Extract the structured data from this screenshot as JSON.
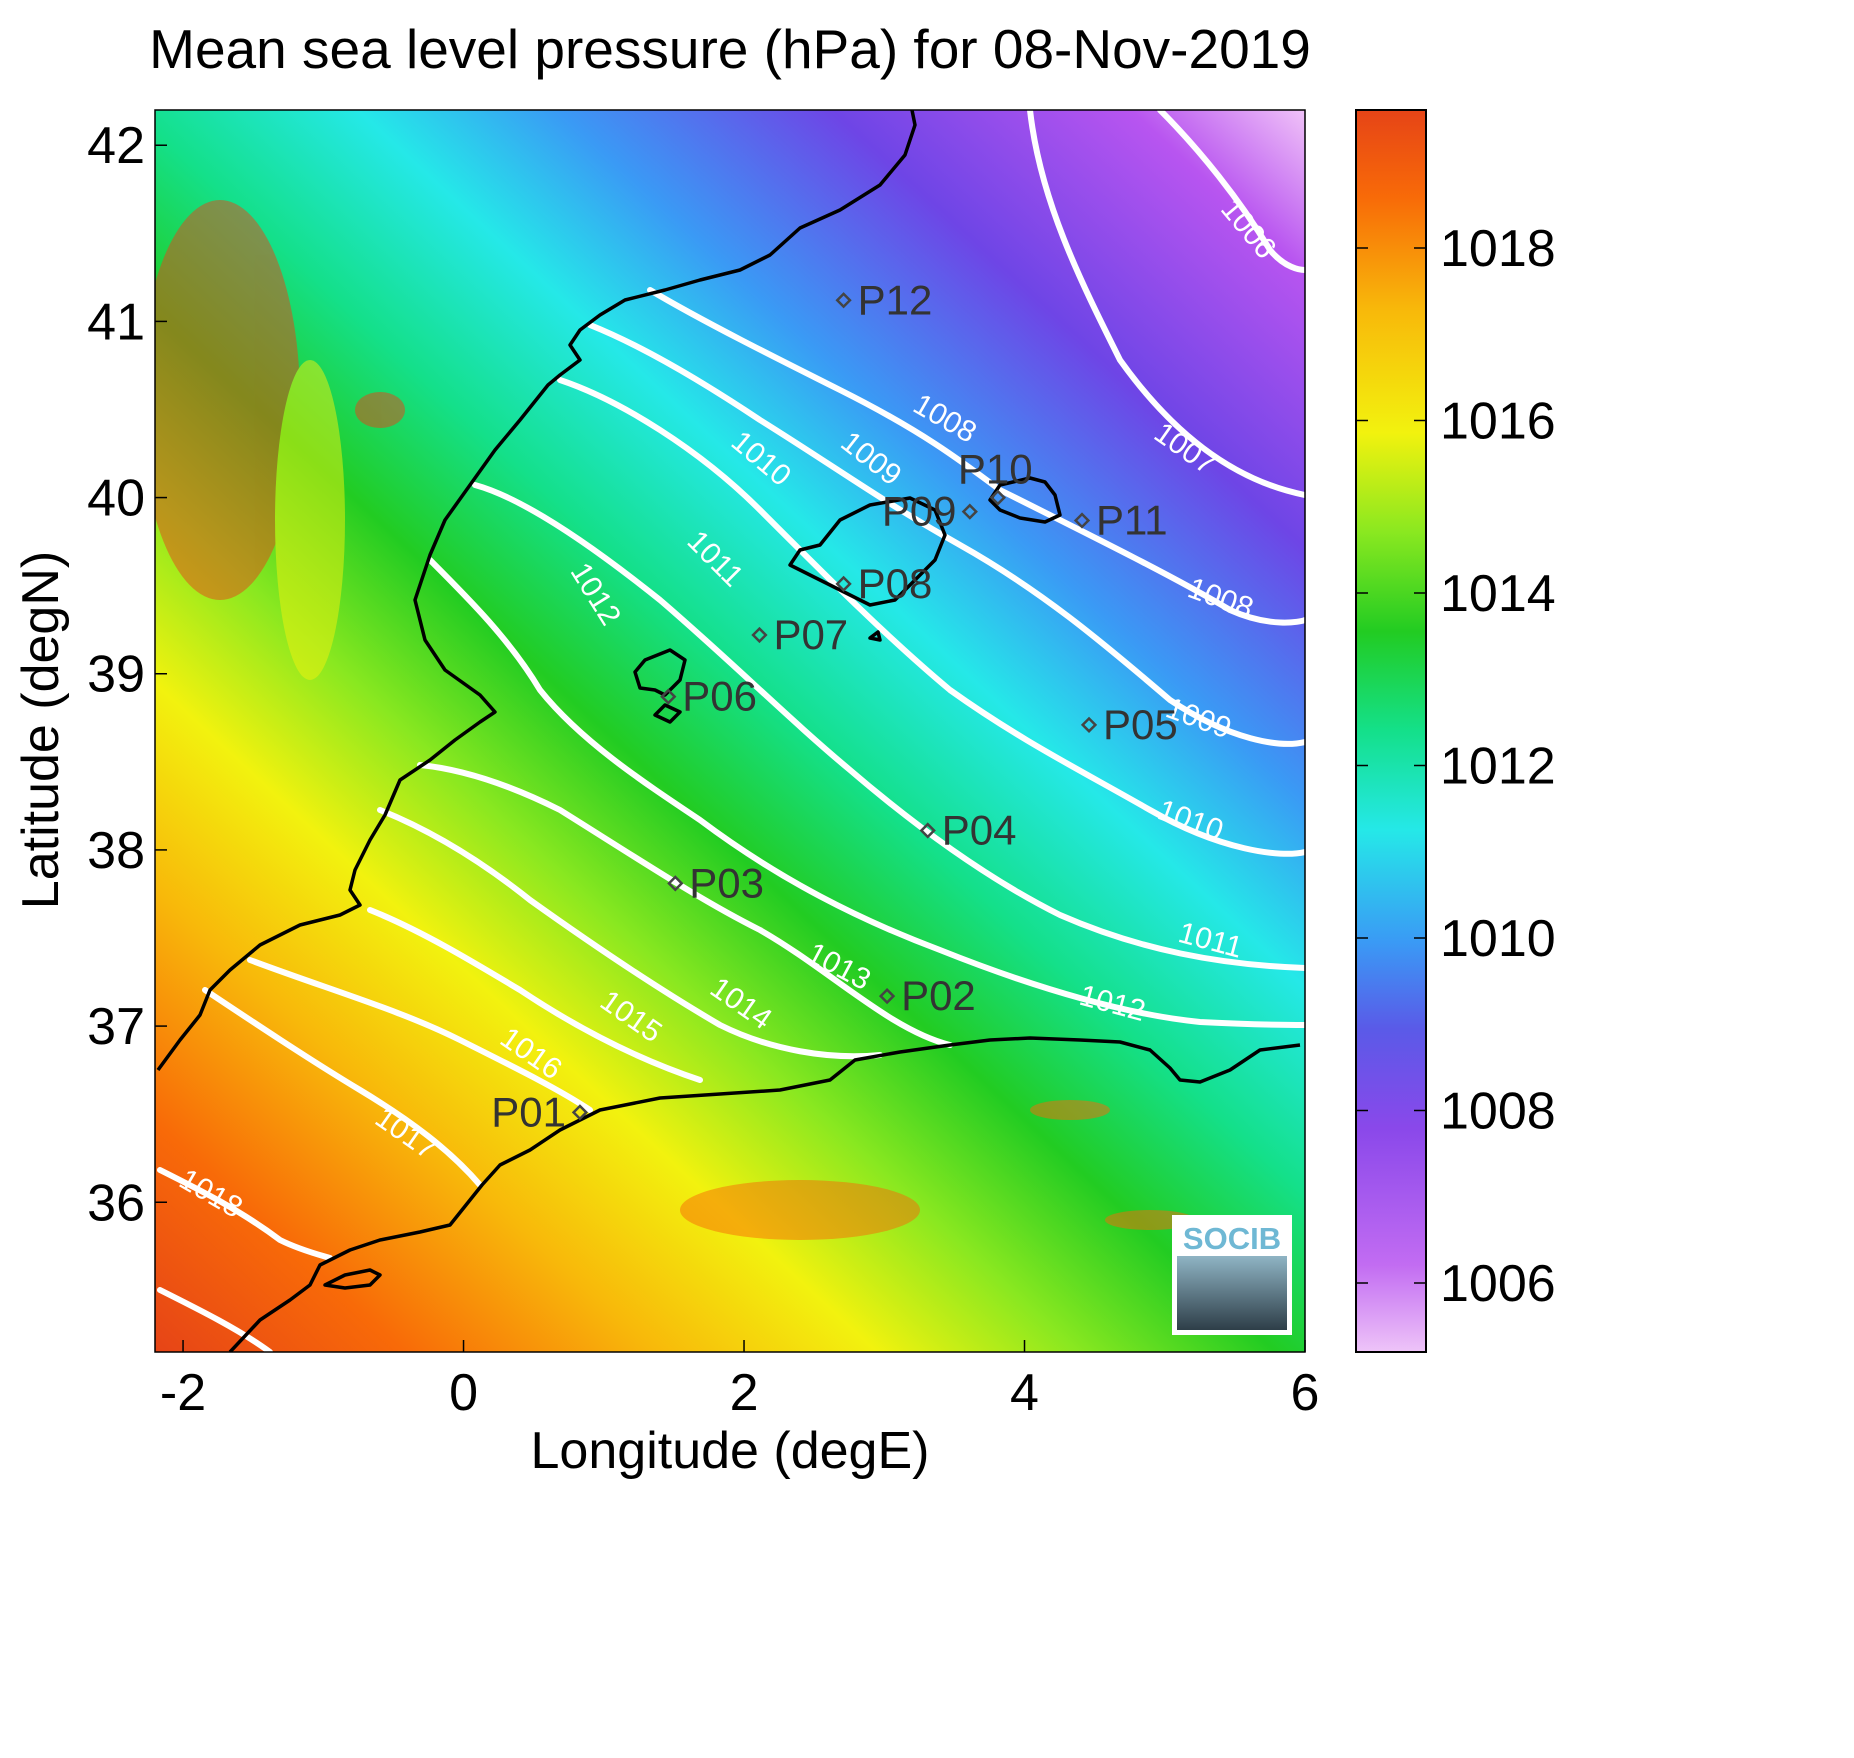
{
  "title": "Mean sea level pressure (hPa) for 08-Nov-2019",
  "xlabel": "Longitude (degE)",
  "ylabel": "Latitude (degN)",
  "x_ticks": [
    "-2",
    "0",
    "2",
    "4",
    "6"
  ],
  "y_ticks": [
    "42",
    "41",
    "40",
    "39",
    "38",
    "37",
    "36"
  ],
  "colorbar": {
    "ticks": [
      "1018",
      "1016",
      "1014",
      "1012",
      "1010",
      "1008",
      "1006"
    ],
    "range": [
      1005.2,
      1019.6
    ],
    "colors": [
      "#e3b4f5",
      "#b855f0",
      "#6e45e6",
      "#3a9af5",
      "#25e8e8",
      "#14e08a",
      "#22cc22",
      "#8ae820",
      "#f2f20e",
      "#f8b80a",
      "#f86a08",
      "#e64417"
    ]
  },
  "logo": "SOCIB",
  "contour_labels": [
    "1006",
    "1007",
    "1008",
    "1008",
    "1009",
    "1009",
    "1010",
    "1010",
    "1011",
    "1011",
    "1012",
    "1012",
    "1013",
    "1014",
    "1015",
    "1016",
    "1017",
    "1018"
  ],
  "chart_data": {
    "type": "heatmap",
    "variable": "Mean sea level pressure (hPa)",
    "date": "08-Nov-2019",
    "xlim": [
      -2.2,
      6
    ],
    "ylim": [
      35.15,
      42.2
    ],
    "points": [
      {
        "name": "P01",
        "lon": 0.83,
        "lat": 36.51
      },
      {
        "name": "P02",
        "lon": 3.02,
        "lat": 37.17
      },
      {
        "name": "P03",
        "lon": 1.51,
        "lat": 37.81
      },
      {
        "name": "P04",
        "lon": 3.31,
        "lat": 38.11
      },
      {
        "name": "P05",
        "lon": 4.46,
        "lat": 38.71
      },
      {
        "name": "P06",
        "lon": 1.46,
        "lat": 38.87
      },
      {
        "name": "P07",
        "lon": 2.11,
        "lat": 39.22
      },
      {
        "name": "P08",
        "lon": 2.71,
        "lat": 39.51
      },
      {
        "name": "P09",
        "lon": 3.61,
        "lat": 39.92
      },
      {
        "name": "P10",
        "lon": 3.81,
        "lat": 40.0
      },
      {
        "name": "P11",
        "lon": 4.41,
        "lat": 39.87
      },
      {
        "name": "P12",
        "lon": 2.71,
        "lat": 41.12
      }
    ],
    "isobars": [
      1006,
      1007,
      1008,
      1009,
      1010,
      1011,
      1012,
      1013,
      1014,
      1015,
      1016,
      1017,
      1018
    ]
  }
}
